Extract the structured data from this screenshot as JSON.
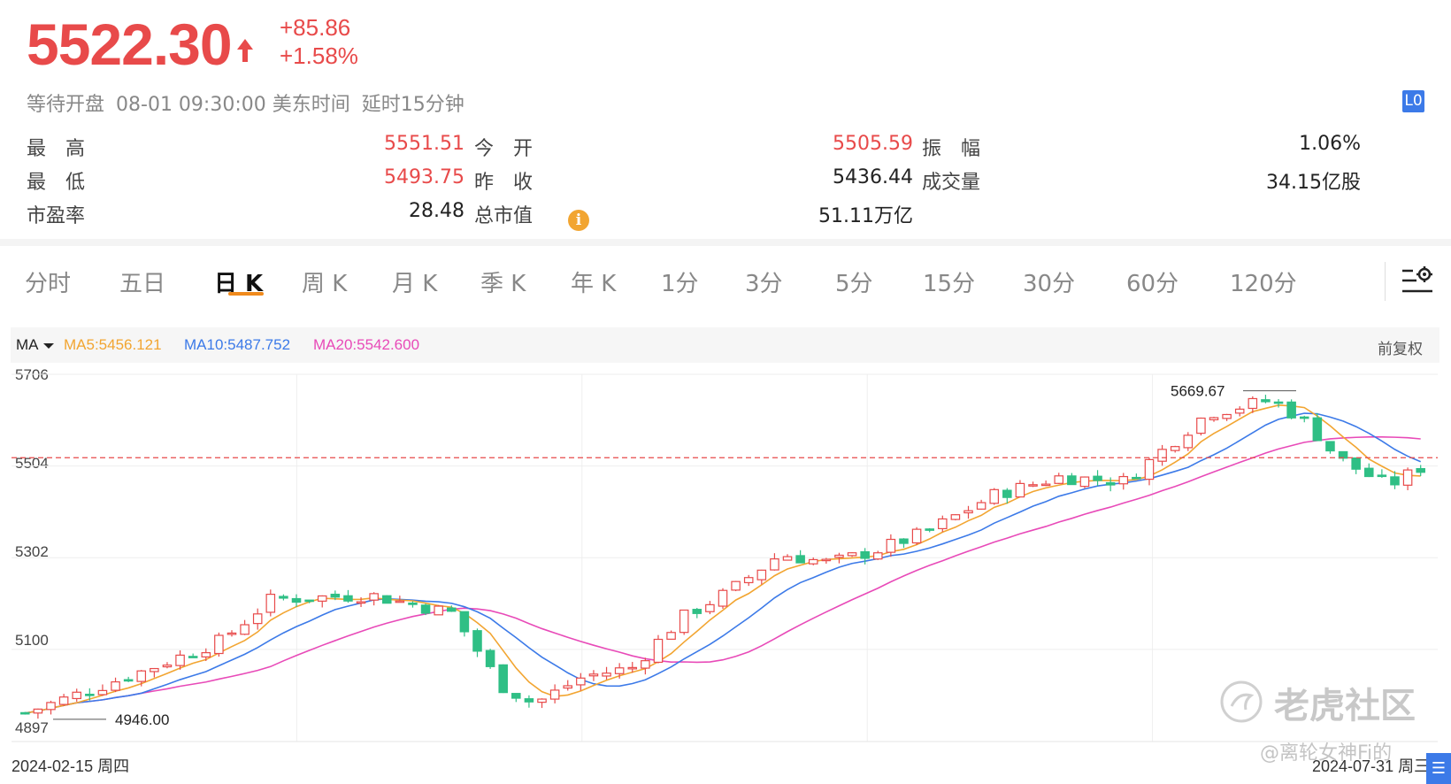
{
  "quote": {
    "price": "5522.30",
    "change": "+85.86",
    "change_pct": "+1.58%",
    "status": "等待开盘",
    "datetime": "08-01 09:30:00 美东时间",
    "delay": "延时15分钟",
    "level_badge": "L0",
    "arrow_icon": "up-arrow-icon",
    "accent_color": "#e84a4a"
  },
  "stats": {
    "high_label": "最　高",
    "high": "5551.51",
    "open_label": "今　开",
    "open": "5505.59",
    "amp_label": "振　幅",
    "amp": "1.06%",
    "low_label": "最　低",
    "low": "5493.75",
    "prev_label": "昨　收",
    "prev": "5436.44",
    "vol_label": "成交量",
    "vol": "34.15亿股",
    "pe_label": "市盈率",
    "pe": "28.48",
    "mcap_label": "总市值",
    "mcap": "51.11万亿"
  },
  "tabs": [
    "分时",
    "五日",
    "日 K",
    "周 K",
    "月 K",
    "季 K",
    "年 K",
    "1分",
    "3分",
    "5分",
    "15分",
    "30分",
    "60分",
    "120分"
  ],
  "active_tab": "日 K",
  "chart": {
    "indicator": "MA",
    "ma5": "MA5:5456.121",
    "ma10": "MA10:5487.752",
    "ma20": "MA20:5542.600",
    "ma5_color": "#f2a531",
    "ma10_color": "#3c7ae8",
    "ma20_color": "#e84ab8",
    "adjust": "前复权",
    "y_ticks": [
      "5706",
      "5504",
      "5302",
      "5100",
      "4897"
    ],
    "high_marker": "5669.67",
    "low_marker": "4946.00",
    "start_date": "2024-02-15 周四",
    "end_date": "2024-07-31 周三",
    "up_color": "#e84a4a",
    "down_color": "#2fbf85"
  },
  "watermark": "老虎社区",
  "credit": "@离轮女神Fi的"
}
